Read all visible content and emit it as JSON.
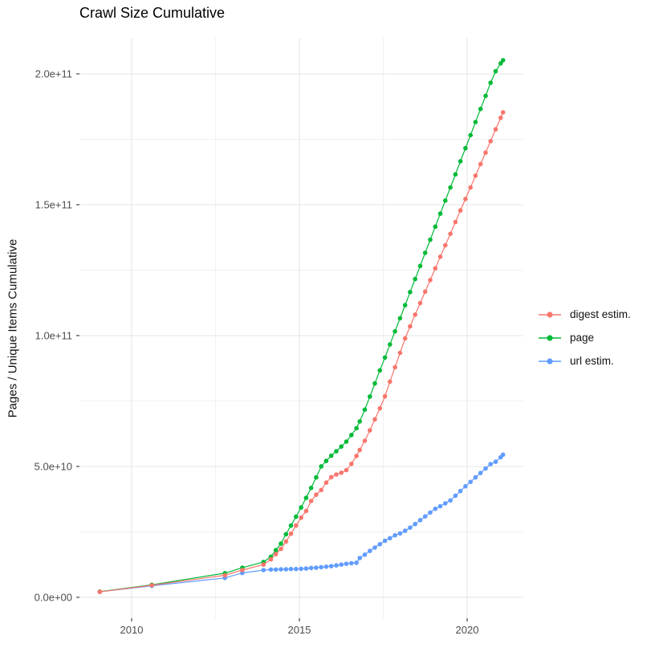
{
  "chart_data": {
    "type": "scatter",
    "title": "Crawl Size Cumulative",
    "xlabel": "",
    "ylabel": "Pages / Unique Items Cumulative",
    "x_unit": "year",
    "legend_position": "right",
    "grid": true,
    "xlim": [
      2008.445,
      2021.675
    ],
    "ylim": [
      -8000000000.0,
      213800000000.0
    ],
    "x_ticks": [
      {
        "v": 2010,
        "label": "2010"
      },
      {
        "v": 2015,
        "label": "2015"
      },
      {
        "v": 2020,
        "label": "2020"
      }
    ],
    "x_minor": [
      2012.5,
      2017.5
    ],
    "y_ticks": [
      {
        "v": 0,
        "label": "0.0e+00"
      },
      {
        "v": 50000000000.0,
        "label": "5.0e+10"
      },
      {
        "v": 100000000000.0,
        "label": "1.0e+11"
      },
      {
        "v": 150000000000.0,
        "label": "1.5e+11"
      },
      {
        "v": 200000000000.0,
        "label": "2.0e+11"
      }
    ],
    "y_minor": [
      25000000000.0,
      75000000000.0,
      125000000000.0,
      175000000000.0
    ],
    "style": {
      "background": "#ffffff",
      "grid_major": "#e4e4e4",
      "grid_minor": "#f1f1f1",
      "tick_color": "#333333",
      "label_color": "#4d4d4d"
    },
    "x": [
      2009.05,
      2010.6,
      2012.78,
      2013.3,
      2013.93,
      2014.15,
      2014.3,
      2014.45,
      2014.6,
      2014.75,
      2014.9,
      2015.05,
      2015.2,
      2015.35,
      2015.5,
      2015.65,
      2015.8,
      2015.95,
      2016.1,
      2016.25,
      2016.4,
      2016.55,
      2016.7,
      2016.8,
      2016.95,
      2017.1,
      2017.25,
      2017.4,
      2017.55,
      2017.7,
      2017.85,
      2018.0,
      2018.15,
      2018.3,
      2018.45,
      2018.6,
      2018.75,
      2018.9,
      2019.05,
      2019.2,
      2019.35,
      2019.5,
      2019.65,
      2019.8,
      2019.95,
      2020.1,
      2020.25,
      2020.4,
      2020.55,
      2020.7,
      2020.85,
      2021.0,
      2021.07
    ],
    "series": [
      {
        "id": "digest-estim",
        "name": "digest estim.",
        "color": "#F8766D",
        "values": [
          2100000000.0,
          4600000000.0,
          8400000000.0,
          10400000000.0,
          12500000000.0,
          14500000000.0,
          16500000000.0,
          18500000000.0,
          21300000000.0,
          24300000000.0,
          27400000000.0,
          30400000000.0,
          33000000000.0,
          36800000000.0,
          39200000000.0,
          41000000000.0,
          43800000000.0,
          45900000000.0,
          46900000000.0,
          47600000000.0,
          48600000000.0,
          51000000000.0,
          54000000000.0,
          56300000000.0,
          59800000000.0,
          63800000000.0,
          68000000000.0,
          72200000000.0,
          76800000000.0,
          82400000000.0,
          87900000000.0,
          93400000000.0,
          98900000000.0,
          103500000000.0,
          108000000000.0,
          112400000000.0,
          116800000000.0,
          121200000000.0,
          125700000000.0,
          130100000000.0,
          134500000000.0,
          138900000000.0,
          143400000000.0,
          147800000000.0,
          152200000000.0,
          156600000000.0,
          161100000000.0,
          165500000000.0,
          169900000000.0,
          174300000000.0,
          178800000000.0,
          183200000000.0,
          185300000000.0
        ]
      },
      {
        "id": "page",
        "name": "page",
        "color": "#00BA38",
        "values": [
          2200000000.0,
          4800000000.0,
          9200000000.0,
          11300000000.0,
          13500000000.0,
          15500000000.0,
          18000000000.0,
          20500000000.0,
          24100000000.0,
          27400000000.0,
          30800000000.0,
          34300000000.0,
          38000000000.0,
          41800000000.0,
          45800000000.0,
          50000000000.0,
          52100000000.0,
          54100000000.0,
          55800000000.0,
          57600000000.0,
          59500000000.0,
          62000000000.0,
          64600000000.0,
          67200000000.0,
          71700000000.0,
          76700000000.0,
          81700000000.0,
          86700000000.0,
          91600000000.0,
          96600000000.0,
          101600000000.0,
          106600000000.0,
          111600000000.0,
          116600000000.0,
          121600000000.0,
          126600000000.0,
          131600000000.0,
          136600000000.0,
          141600000000.0,
          146600000000.0,
          151600000000.0,
          156600000000.0,
          161600000000.0,
          166600000000.0,
          171600000000.0,
          176600000000.0,
          181600000000.0,
          186600000000.0,
          191600000000.0,
          196600000000.0,
          201000000000.0,
          204000000000.0,
          205200000000.0
        ]
      },
      {
        "id": "url-estim",
        "name": "url estim.",
        "color": "#619CFF",
        "values": [
          2100000000.0,
          4400000000.0,
          7400000000.0,
          9300000000.0,
          10400000000.0,
          10600000000.0,
          10600000000.0,
          10700000000.0,
          10700000000.0,
          10800000000.0,
          10800000000.0,
          10900000000.0,
          11000000000.0,
          11200000000.0,
          11300000000.0,
          11500000000.0,
          11700000000.0,
          11900000000.0,
          12200000000.0,
          12500000000.0,
          12800000000.0,
          13000000000.0,
          13200000000.0,
          15000000000.0,
          16300000000.0,
          17700000000.0,
          19000000000.0,
          20300000000.0,
          21600000000.0,
          22600000000.0,
          23700000000.0,
          24400000000.0,
          25400000000.0,
          26600000000.0,
          28000000000.0,
          29500000000.0,
          30900000000.0,
          32400000000.0,
          33800000000.0,
          34800000000.0,
          35900000000.0,
          37000000000.0,
          38800000000.0,
          40600000000.0,
          42400000000.0,
          44100000000.0,
          45800000000.0,
          47500000000.0,
          49200000000.0,
          50900000000.0,
          51800000000.0,
          53500000000.0,
          54500000000.0
        ]
      }
    ]
  }
}
